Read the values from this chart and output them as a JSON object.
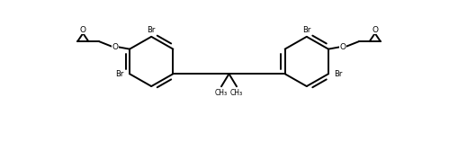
{
  "line_color": "#000000",
  "bg_color": "#ffffff",
  "lw": 1.4,
  "fig_w": 5.09,
  "fig_h": 1.67,
  "dpi": 100,
  "xlim": [
    0,
    100
  ],
  "ylim": [
    0,
    33
  ]
}
